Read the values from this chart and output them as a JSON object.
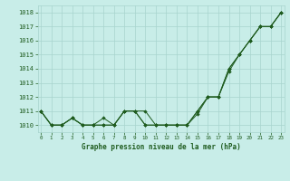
{
  "title": "Graphe pression niveau de la mer (hPa)",
  "x_labels": [
    "0",
    "1",
    "2",
    "3",
    "4",
    "5",
    "6",
    "7",
    "8",
    "9",
    "10",
    "11",
    "12",
    "13",
    "14",
    "15",
    "16",
    "17",
    "18",
    "19",
    "20",
    "21",
    "22",
    "23"
  ],
  "series": [
    [
      1011,
      1010,
      1010,
      1010.5,
      1010,
      1010,
      1010,
      1010,
      1011,
      1011,
      1011,
      1010,
      1010,
      1010,
      1010,
      1011,
      1012,
      1012,
      1014,
      1015,
      1016,
      1017,
      1017,
      1018
    ],
    [
      1011,
      1010,
      1010,
      1010.5,
      1010,
      1010,
      1010.5,
      1010,
      1011,
      1011,
      1010,
      1010,
      1010,
      1010,
      1010,
      1010.8,
      1012,
      1012,
      1013.8,
      1015,
      1016,
      1017,
      1017,
      1018
    ],
    [
      1011,
      1010,
      1010,
      1010.5,
      1010,
      1010,
      1010,
      1010,
      1011,
      1011,
      1010,
      1010,
      1010,
      1010,
      1010,
      1011,
      1012,
      1012,
      1014,
      1015,
      1016,
      1017,
      1017,
      1018
    ]
  ],
  "line_color": "#1f5c1f",
  "marker_color": "#1f5c1f",
  "bg_color": "#c8ede8",
  "grid_color": "#a8d4ce",
  "title_color": "#1f5c1f",
  "ylim": [
    1009.5,
    1018.5
  ],
  "yticks": [
    1010,
    1011,
    1012,
    1013,
    1014,
    1015,
    1016,
    1017,
    1018
  ],
  "fig_width": 3.2,
  "fig_height": 2.0,
  "dpi": 100
}
